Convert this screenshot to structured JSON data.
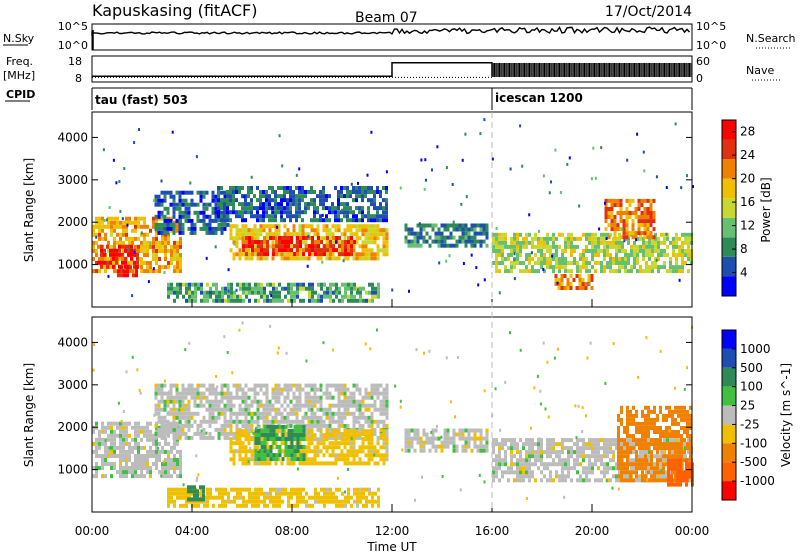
{
  "header": {
    "station": "Kapuskasing (fitACF)",
    "beam": "Beam 07",
    "date": "17/Oct/2014"
  },
  "labels": {
    "nsky": "N.Sky",
    "nsearch": "N.Search",
    "freq_line1": "Freq.",
    "freq_line2": "[MHz]",
    "nave": "Nave",
    "cpid": "CPID"
  },
  "noise_axis": {
    "left_ticks": [
      "10^5",
      "10^0"
    ],
    "right_ticks": [
      "10^5",
      "10^0"
    ]
  },
  "freq_axis": {
    "left_ticks": [
      "18",
      "8"
    ],
    "right_ticks": [
      "60",
      "0"
    ]
  },
  "cpid_segments": [
    {
      "name": "tau (fast) 503",
      "start_hour": 0
    },
    {
      "name": "icescan 1200",
      "start_hour": 16
    }
  ],
  "colors": {
    "power_scale": [
      "#0000ff",
      "#1e4fb0",
      "#2e8b57",
      "#66c070",
      "#c8d830",
      "#f0c000",
      "#f08000",
      "#e03010",
      "#ff0000"
    ],
    "velocity_scale": [
      "#0000ff",
      "#1e4fb0",
      "#2e8b57",
      "#40c040",
      "#bcbcbc",
      "#f0c000",
      "#f08000",
      "#ff6000",
      "#ff0000"
    ]
  },
  "chart_data": [
    {
      "type": "heatmap",
      "panel": "power",
      "ylabel": "Slant Range [km]",
      "y_ticks": [
        "1000",
        "2000",
        "3000",
        "4000"
      ],
      "ylim": [
        0,
        4600
      ],
      "xlim_hours": [
        0,
        24
      ],
      "colorbar": {
        "label": "Power [dB]",
        "ticks": [
          "4",
          "8",
          "12",
          "16",
          "20",
          "24",
          "28"
        ],
        "range": [
          0,
          30
        ]
      },
      "regions": [
        {
          "t0": 0.0,
          "t1": 3.5,
          "r0": 800,
          "r1": 2100,
          "value": 20
        },
        {
          "t0": 0.2,
          "t1": 1.8,
          "r0": 900,
          "r1": 1400,
          "value": 27
        },
        {
          "t0": 1.0,
          "t1": 1.8,
          "r0": 700,
          "r1": 950,
          "value": 28
        },
        {
          "t0": 2.5,
          "t1": 5.5,
          "r0": 1700,
          "r1": 2700,
          "value": 6
        },
        {
          "t0": 3.0,
          "t1": 11.5,
          "r0": 100,
          "r1": 500,
          "value": 10
        },
        {
          "t0": 5.5,
          "t1": 11.8,
          "r0": 1100,
          "r1": 1900,
          "value": 18
        },
        {
          "t0": 6.0,
          "t1": 10.5,
          "r0": 1200,
          "r1": 1600,
          "value": 26
        },
        {
          "t0": 5.0,
          "t1": 11.8,
          "r0": 2000,
          "r1": 2800,
          "value": 6
        },
        {
          "t0": 12.5,
          "t1": 15.8,
          "r0": 1400,
          "r1": 1900,
          "value": 8
        },
        {
          "t0": 16.0,
          "t1": 24.0,
          "r0": 800,
          "r1": 1700,
          "value": 14
        },
        {
          "t0": 18.5,
          "t1": 20.0,
          "r0": 400,
          "r1": 700,
          "value": 22
        },
        {
          "t0": 20.5,
          "t1": 22.5,
          "r0": 1600,
          "r1": 2500,
          "value": 22
        }
      ]
    },
    {
      "type": "heatmap",
      "panel": "velocity",
      "ylabel": "Slant Range [km]",
      "y_ticks": [
        "1000",
        "2000",
        "3000",
        "4000"
      ],
      "ylim": [
        0,
        4600
      ],
      "xlim_hours": [
        0,
        24
      ],
      "xlabel": "Time UT",
      "x_ticks": [
        "00:00",
        "04:00",
        "08:00",
        "12:00",
        "16:00",
        "20:00",
        "00:00"
      ],
      "colorbar": {
        "label": "Velocity [m s^-1]",
        "ticks": [
          "1000",
          "500",
          "100",
          "25",
          "-25",
          "-100",
          "-500",
          "-1000"
        ]
      },
      "regions": [
        {
          "t0": 0.0,
          "t1": 3.5,
          "r0": 800,
          "r1": 2100,
          "value": 0
        },
        {
          "t0": 2.5,
          "t1": 11.8,
          "r0": 1700,
          "r1": 3000,
          "value": 0
        },
        {
          "t0": 3.0,
          "t1": 11.5,
          "r0": 100,
          "r1": 500,
          "value": -50
        },
        {
          "t0": 3.8,
          "t1": 4.5,
          "r0": 250,
          "r1": 600,
          "value": 300
        },
        {
          "t0": 5.5,
          "t1": 11.8,
          "r0": 1100,
          "r1": 1900,
          "value": -50
        },
        {
          "t0": 6.5,
          "t1": 8.5,
          "r0": 1200,
          "r1": 2000,
          "value": 100
        },
        {
          "t0": 12.5,
          "t1": 15.8,
          "r0": 1400,
          "r1": 1900,
          "value": 0
        },
        {
          "t0": 16.0,
          "t1": 24.0,
          "r0": 700,
          "r1": 1700,
          "value": 0
        },
        {
          "t0": 21.0,
          "t1": 24.0,
          "r0": 700,
          "r1": 2500,
          "value": -150
        },
        {
          "t0": 23.0,
          "t1": 24.0,
          "r0": 600,
          "r1": 1200,
          "value": -700
        }
      ]
    }
  ]
}
